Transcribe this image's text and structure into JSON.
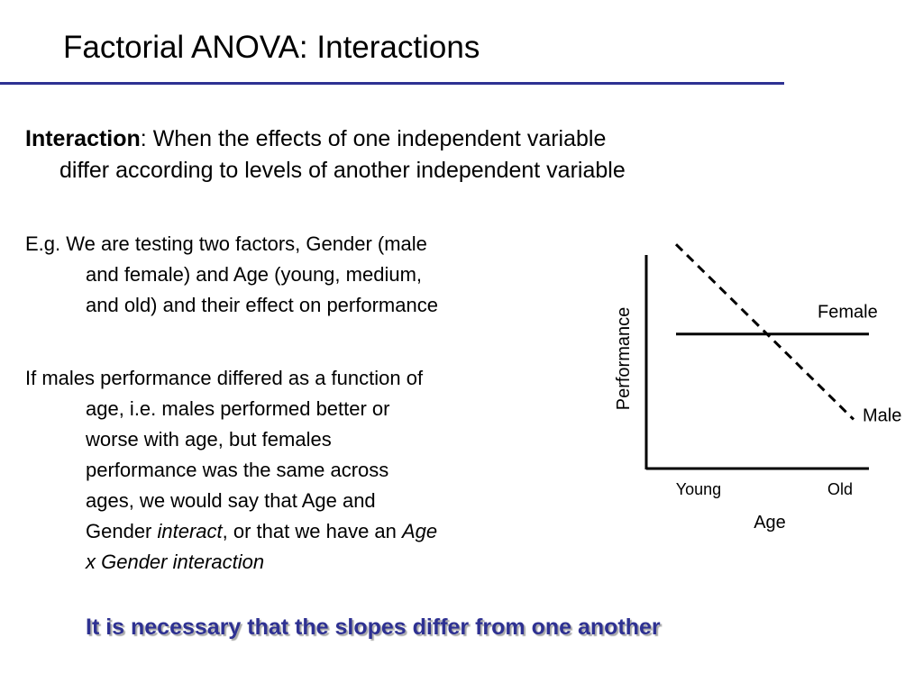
{
  "title": "Factorial ANOVA: Interactions",
  "definition": {
    "term": "Interaction",
    "rest_line1": ": When the effects of one independent variable",
    "line2": "differ according to levels of another independent variable"
  },
  "example": {
    "line1": "E.g. We are testing two factors, Gender (male",
    "line2": "and female) and Age (young, medium,",
    "line3": "and old) and their effect on performance"
  },
  "explanation": {
    "line1": "If males performance differed as a function of",
    "line2": "age, i.e. males performed better or",
    "line3": "worse with age, but females",
    "line4": "performance was the same across",
    "line5": "ages, we would say that Age and",
    "line6_a": "Gender ",
    "line6_b": "interact",
    "line6_c": ", or that we have an ",
    "line6_d": "Age",
    "line7": "x Gender interaction"
  },
  "conclusion": "It is necessary that the slopes differ from one another",
  "chart_data": {
    "type": "line",
    "title": "",
    "xlabel": "Age",
    "ylabel": "Performance",
    "x_tick_labels": [
      "Young",
      "Old"
    ],
    "x": [
      0,
      1
    ],
    "ylim": [
      0,
      1
    ],
    "grid": false,
    "legend": "line labels at right end",
    "series": [
      {
        "name": "Female",
        "values": [
          0.63,
          0.63
        ],
        "line_style": "solid",
        "color": "#000000"
      },
      {
        "name": "Male",
        "values": [
          1.05,
          0.23
        ],
        "line_style": "dashed",
        "color": "#000000"
      }
    ]
  }
}
